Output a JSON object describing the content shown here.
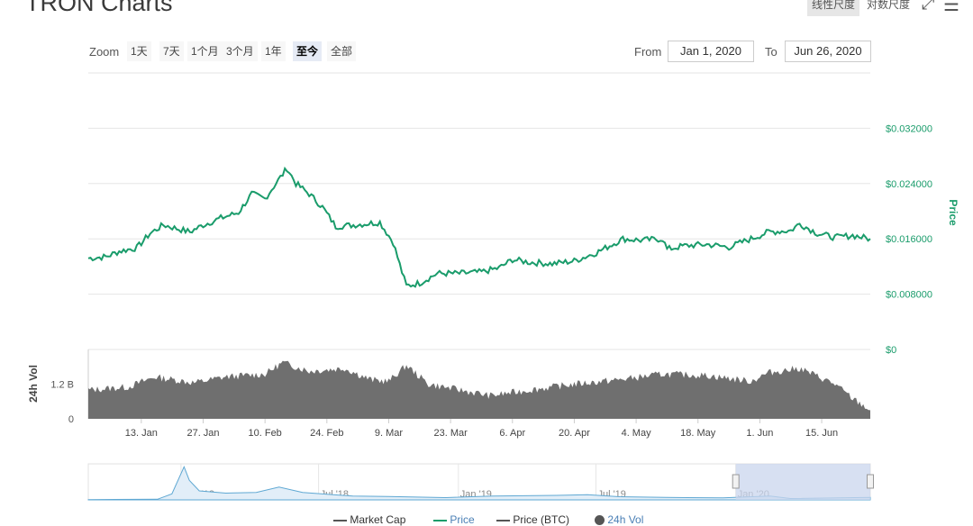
{
  "page": {
    "title": "TRON Charts"
  },
  "toolbar": {
    "linear_label": "线性尺度",
    "log_label": "对数尺度",
    "fullscreen_icon": "expand-icon",
    "menu_icon": "hamburger-menu-icon"
  },
  "zoom": {
    "label": "Zoom",
    "buttons": [
      "1天",
      "7天",
      "1个月",
      "3个月",
      "1年",
      "至今",
      "全部"
    ],
    "active": "至今"
  },
  "range": {
    "from_label": "From",
    "from_value": "Jan 1, 2020",
    "to_label": "To",
    "to_value": "Jun 26, 2020"
  },
  "legend": {
    "items": [
      {
        "label": "Market Cap",
        "color": "#555555"
      },
      {
        "label": "Price",
        "color": "#1a9c6b"
      },
      {
        "label": "Price (BTC)",
        "color": "#555555"
      },
      {
        "label": "24h Vol",
        "color": "#555555"
      }
    ]
  },
  "colors": {
    "price": "#1a9c6b",
    "volume": "#6f6f6f",
    "navigator": "#5fa8d3",
    "navigator_mask": "#c9d6ee",
    "grid": "#e6e6e6"
  },
  "chart_data": {
    "type": "line",
    "x_range": [
      "2020-01-01",
      "2020-06-26"
    ],
    "x_tick_labels": [
      "13. Jan",
      "27. Jan",
      "10. Feb",
      "24. Feb",
      "9. Mar",
      "23. Mar",
      "6. Apr",
      "20. Apr",
      "4. May",
      "18. May",
      "1. Jun",
      "15. Jun"
    ],
    "x_tick_dates": [
      "2020-01-13",
      "2020-01-27",
      "2020-02-10",
      "2020-02-24",
      "2020-03-09",
      "2020-03-23",
      "2020-04-06",
      "2020-04-20",
      "2020-05-04",
      "2020-05-18",
      "2020-06-01",
      "2020-06-15"
    ],
    "price_axis": {
      "label": "Price",
      "ticks": [
        0,
        0.008,
        0.016,
        0.024,
        0.032
      ],
      "tick_labels": [
        "$0",
        "$0.008000",
        "$0.016000",
        "$0.024000",
        "$0.032000"
      ],
      "ylim": [
        0,
        0.04
      ]
    },
    "price_series": {
      "name": "Price",
      "points": [
        [
          "2020-01-01",
          0.0132
        ],
        [
          "2020-01-05",
          0.0134
        ],
        [
          "2020-01-08",
          0.0142
        ],
        [
          "2020-01-12",
          0.0147
        ],
        [
          "2020-01-15",
          0.0168
        ],
        [
          "2020-01-18",
          0.018
        ],
        [
          "2020-01-21",
          0.0175
        ],
        [
          "2020-01-24",
          0.017
        ],
        [
          "2020-01-27",
          0.018
        ],
        [
          "2020-01-31",
          0.019
        ],
        [
          "2020-02-04",
          0.0198
        ],
        [
          "2020-02-07",
          0.0225
        ],
        [
          "2020-02-10",
          0.0218
        ],
        [
          "2020-02-13",
          0.0245
        ],
        [
          "2020-02-15",
          0.0262
        ],
        [
          "2020-02-17",
          0.024
        ],
        [
          "2020-02-20",
          0.0225
        ],
        [
          "2020-02-23",
          0.0206
        ],
        [
          "2020-02-26",
          0.0178
        ],
        [
          "2020-03-01",
          0.018
        ],
        [
          "2020-03-04",
          0.0182
        ],
        [
          "2020-03-07",
          0.0184
        ],
        [
          "2020-03-10",
          0.0155
        ],
        [
          "2020-03-12",
          0.0112
        ],
        [
          "2020-03-13",
          0.0092
        ],
        [
          "2020-03-16",
          0.0096
        ],
        [
          "2020-03-20",
          0.011
        ],
        [
          "2020-03-25",
          0.011
        ],
        [
          "2020-03-30",
          0.0112
        ],
        [
          "2020-04-03",
          0.0118
        ],
        [
          "2020-04-06",
          0.013
        ],
        [
          "2020-04-10",
          0.0126
        ],
        [
          "2020-04-15",
          0.0124
        ],
        [
          "2020-04-20",
          0.0128
        ],
        [
          "2020-04-25",
          0.014
        ],
        [
          "2020-05-01",
          0.016
        ],
        [
          "2020-05-05",
          0.0158
        ],
        [
          "2020-05-10",
          0.016
        ],
        [
          "2020-05-11",
          0.0145
        ],
        [
          "2020-05-15",
          0.015
        ],
        [
          "2020-05-20",
          0.0152
        ],
        [
          "2020-05-25",
          0.0148
        ],
        [
          "2020-05-30",
          0.016
        ],
        [
          "2020-06-03",
          0.017
        ],
        [
          "2020-06-08",
          0.0172
        ],
        [
          "2020-06-10",
          0.0182
        ],
        [
          "2020-06-14",
          0.0168
        ],
        [
          "2020-06-18",
          0.0162
        ],
        [
          "2020-06-22",
          0.0165
        ],
        [
          "2020-06-26",
          0.016
        ]
      ]
    },
    "volume_axis": {
      "label": "24h Vol",
      "ticks": [
        0,
        1200000000
      ],
      "tick_labels": [
        "0",
        "1.2 B"
      ],
      "ylim": [
        0,
        2400000000
      ]
    },
    "volume_series": {
      "name": "24h Vol",
      "points": [
        [
          "2020-01-01",
          1000000000
        ],
        [
          "2020-01-10",
          1100000000
        ],
        [
          "2020-01-16",
          1450000000
        ],
        [
          "2020-01-25",
          1250000000
        ],
        [
          "2020-02-01",
          1450000000
        ],
        [
          "2020-02-10",
          1550000000
        ],
        [
          "2020-02-14",
          1950000000
        ],
        [
          "2020-02-20",
          1650000000
        ],
        [
          "2020-02-28",
          1750000000
        ],
        [
          "2020-03-05",
          1350000000
        ],
        [
          "2020-03-09",
          1300000000
        ],
        [
          "2020-03-13",
          1850000000
        ],
        [
          "2020-03-18",
          1200000000
        ],
        [
          "2020-03-25",
          1000000000
        ],
        [
          "2020-04-01",
          800000000
        ],
        [
          "2020-04-10",
          1000000000
        ],
        [
          "2020-04-20",
          1200000000
        ],
        [
          "2020-04-30",
          1350000000
        ],
        [
          "2020-05-10",
          1550000000
        ],
        [
          "2020-05-20",
          1500000000
        ],
        [
          "2020-05-30",
          1300000000
        ],
        [
          "2020-06-03",
          1600000000
        ],
        [
          "2020-06-10",
          1750000000
        ],
        [
          "2020-06-18",
          1200000000
        ],
        [
          "2020-06-22",
          700000000
        ],
        [
          "2020-06-26",
          300000000
        ]
      ]
    },
    "navigator": {
      "x_tick_labels": [
        "Jan '18",
        "Jul '18",
        "Jan '19",
        "Jul '19",
        "Jan '20"
      ],
      "x_tick_dates": [
        "2018-01-01",
        "2018-07-01",
        "2019-01-01",
        "2019-07-01",
        "2020-01-01"
      ],
      "x_range": [
        "2017-09-01",
        "2020-06-26"
      ],
      "selected_range": [
        "2020-01-01",
        "2020-06-26"
      ],
      "points": [
        [
          "2017-09-01",
          0.002
        ],
        [
          "2017-12-01",
          0.004
        ],
        [
          "2017-12-20",
          0.04
        ],
        [
          "2018-01-05",
          0.22
        ],
        [
          "2018-01-12",
          0.13
        ],
        [
          "2018-01-25",
          0.06
        ],
        [
          "2018-03-01",
          0.045
        ],
        [
          "2018-04-10",
          0.05
        ],
        [
          "2018-05-10",
          0.085
        ],
        [
          "2018-06-10",
          0.05
        ],
        [
          "2018-08-15",
          0.025
        ],
        [
          "2018-10-01",
          0.023
        ],
        [
          "2018-12-15",
          0.015
        ],
        [
          "2019-02-15",
          0.025
        ],
        [
          "2019-05-10",
          0.03
        ],
        [
          "2019-06-20",
          0.035
        ],
        [
          "2019-08-01",
          0.021
        ],
        [
          "2019-10-01",
          0.016
        ],
        [
          "2019-12-15",
          0.013
        ],
        [
          "2020-02-15",
          0.026
        ],
        [
          "2020-03-13",
          0.009
        ],
        [
          "2020-06-26",
          0.016
        ]
      ],
      "ylim": [
        0,
        0.24
      ]
    }
  }
}
